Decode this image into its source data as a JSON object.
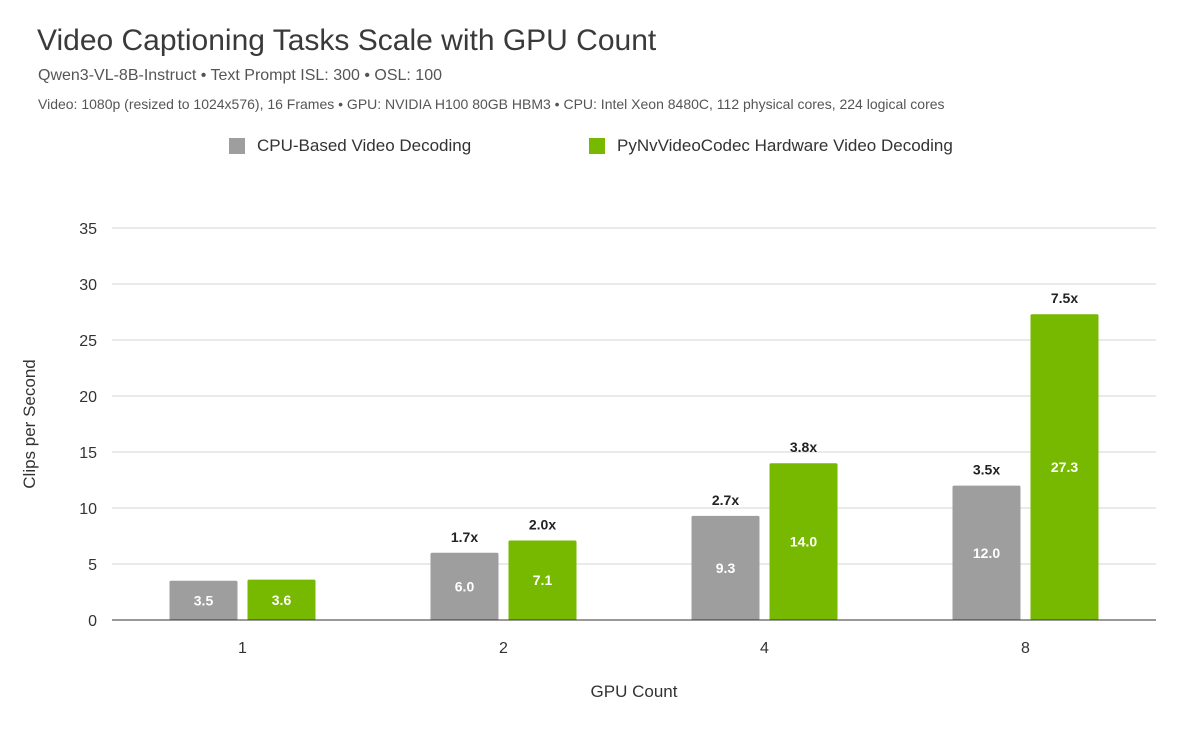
{
  "header": {
    "title": "Video Captioning Tasks Scale with GPU Count",
    "subtitle": "Qwen3-VL-8B-Instruct  •  Text Prompt ISL: 300  •  OSL: 100",
    "note": "Video: 1080p (resized to 1024x576), 16 Frames  •  GPU: NVIDIA H100 80GB HBM3  •  CPU: Intel Xeon 8480C, 112 physical cores, 224 logical cores"
  },
  "chart_data": {
    "type": "bar",
    "title": "Video Captioning Tasks Scale with GPU Count",
    "xlabel": "GPU Count",
    "ylabel": "Clips per Second",
    "ylim": [
      0,
      35
    ],
    "yticks": [
      0,
      5,
      10,
      15,
      20,
      25,
      30,
      35
    ],
    "grid": true,
    "legend_position": "top",
    "categories": [
      "1",
      "2",
      "4",
      "8"
    ],
    "series": [
      {
        "name": "CPU-Based Video Decoding",
        "color": "#9e9e9e",
        "values": [
          3.5,
          6.0,
          9.3,
          12.0
        ],
        "value_labels": [
          "3.5",
          "6.0",
          "9.3",
          "12.0"
        ],
        "speedup_labels": [
          "",
          "1.7x",
          "2.7x",
          "3.5x"
        ]
      },
      {
        "name": "PyNvVideoCodec Hardware Video Decoding",
        "color": "#76b900",
        "values": [
          3.6,
          7.1,
          14.0,
          27.3
        ],
        "value_labels": [
          "3.6",
          "7.1",
          "14.0",
          "27.3"
        ],
        "speedup_labels": [
          "",
          "2.0x",
          "3.8x",
          "7.5x"
        ]
      }
    ]
  }
}
